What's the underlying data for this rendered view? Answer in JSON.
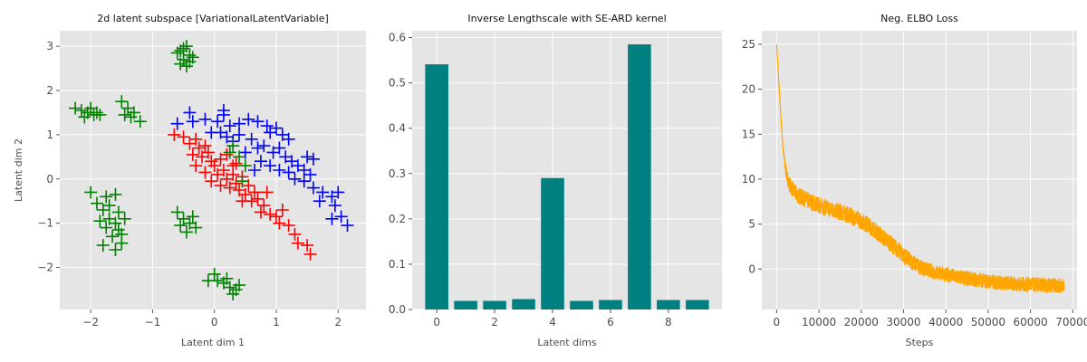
{
  "chart_data": [
    {
      "type": "scatter",
      "title": "2d latent subspace [VariationalLatentVariable]",
      "xlabel": "Latent dim 1",
      "ylabel": "Latent dim 2",
      "xlim": [
        -2.5,
        2.45
      ],
      "ylim": [
        -2.95,
        3.35
      ],
      "xticks": [
        -2,
        -1,
        0,
        1,
        2
      ],
      "yticks": [
        -2,
        -1,
        0,
        1,
        2,
        3
      ],
      "grid": true,
      "marker": "plus",
      "series": [
        {
          "color": "#0000ff",
          "points": [
            [
              -0.6,
              1.25
            ],
            [
              -0.35,
              1.3
            ],
            [
              -0.15,
              1.35
            ],
            [
              0.05,
              1.3
            ],
            [
              0.15,
              1.45
            ],
            [
              0.25,
              1.2
            ],
            [
              0.4,
              1.25
            ],
            [
              0.55,
              1.35
            ],
            [
              0.7,
              1.3
            ],
            [
              0.85,
              1.2
            ],
            [
              0.9,
              1.05
            ],
            [
              1.0,
              1.15
            ],
            [
              1.1,
              1.0
            ],
            [
              1.2,
              0.9
            ],
            [
              0.6,
              0.9
            ],
            [
              0.7,
              0.7
            ],
            [
              0.8,
              0.75
            ],
            [
              0.95,
              0.6
            ],
            [
              1.05,
              0.7
            ],
            [
              1.15,
              0.5
            ],
            [
              1.25,
              0.4
            ],
            [
              1.35,
              0.3
            ],
            [
              1.45,
              0.2
            ],
            [
              1.55,
              0.1
            ],
            [
              1.3,
              0.0
            ],
            [
              1.45,
              -0.05
            ],
            [
              1.6,
              -0.2
            ],
            [
              1.75,
              -0.3
            ],
            [
              1.9,
              -0.4
            ],
            [
              2.0,
              -0.3
            ],
            [
              1.95,
              -0.6
            ],
            [
              2.05,
              -0.85
            ],
            [
              2.15,
              -1.05
            ],
            [
              1.9,
              -0.9
            ],
            [
              1.7,
              -0.5
            ],
            [
              0.4,
              1.0
            ],
            [
              0.3,
              0.85
            ],
            [
              0.2,
              0.95
            ],
            [
              0.1,
              1.05
            ],
            [
              -0.05,
              1.05
            ],
            [
              0.5,
              0.6
            ],
            [
              0.75,
              0.4
            ],
            [
              0.65,
              0.2
            ],
            [
              0.9,
              0.3
            ],
            [
              1.05,
              0.2
            ],
            [
              1.2,
              0.15
            ],
            [
              1.5,
              0.5
            ],
            [
              1.6,
              0.45
            ],
            [
              -0.4,
              1.5
            ],
            [
              0.15,
              1.55
            ]
          ]
        },
        {
          "color": "#ff0000",
          "points": [
            [
              -0.65,
              1.0
            ],
            [
              -0.5,
              0.95
            ],
            [
              -0.4,
              0.8
            ],
            [
              -0.3,
              0.9
            ],
            [
              -0.25,
              0.7
            ],
            [
              -0.15,
              0.75
            ],
            [
              -0.1,
              0.6
            ],
            [
              -0.2,
              0.5
            ],
            [
              -0.05,
              0.4
            ],
            [
              0.0,
              0.3
            ],
            [
              0.1,
              0.45
            ],
            [
              0.15,
              0.2
            ],
            [
              0.05,
              0.1
            ],
            [
              0.2,
              0.0
            ],
            [
              0.3,
              0.1
            ],
            [
              0.35,
              -0.1
            ],
            [
              0.25,
              -0.2
            ],
            [
              0.4,
              -0.25
            ],
            [
              0.5,
              -0.35
            ],
            [
              0.45,
              -0.5
            ],
            [
              0.6,
              -0.5
            ],
            [
              0.7,
              -0.45
            ],
            [
              0.8,
              -0.6
            ],
            [
              0.75,
              -0.75
            ],
            [
              0.9,
              -0.8
            ],
            [
              1.0,
              -0.85
            ],
            [
              1.05,
              -1.0
            ],
            [
              1.2,
              -1.05
            ],
            [
              1.3,
              -1.25
            ],
            [
              1.35,
              -1.45
            ],
            [
              1.5,
              -1.5
            ],
            [
              1.55,
              -1.7
            ],
            [
              1.1,
              -0.7
            ],
            [
              0.65,
              -0.3
            ],
            [
              0.3,
              0.3
            ],
            [
              0.45,
              0.05
            ],
            [
              -0.05,
              -0.05
            ],
            [
              0.1,
              -0.15
            ],
            [
              -0.15,
              0.15
            ],
            [
              0.55,
              -0.15
            ],
            [
              0.85,
              -0.3
            ],
            [
              0.2,
              0.55
            ],
            [
              0.35,
              0.35
            ],
            [
              -0.35,
              0.55
            ],
            [
              -0.3,
              0.3
            ]
          ]
        },
        {
          "color": "#008000",
          "points": [
            [
              -0.55,
              2.9
            ],
            [
              -0.45,
              3.0
            ],
            [
              -0.5,
              2.7
            ],
            [
              -0.4,
              2.8
            ],
            [
              -0.55,
              2.6
            ],
            [
              -0.35,
              2.75
            ],
            [
              -0.6,
              2.85
            ],
            [
              -0.45,
              2.55
            ],
            [
              -0.5,
              2.95
            ],
            [
              -0.4,
              2.65
            ],
            [
              -2.25,
              1.6
            ],
            [
              -2.15,
              1.55
            ],
            [
              -2.05,
              1.5
            ],
            [
              -1.95,
              1.45
            ],
            [
              -1.85,
              1.45
            ],
            [
              -2.1,
              1.4
            ],
            [
              -2.0,
              1.6
            ],
            [
              -1.9,
              1.5
            ],
            [
              -1.5,
              1.75
            ],
            [
              -1.4,
              1.6
            ],
            [
              -1.35,
              1.4
            ],
            [
              -1.2,
              1.3
            ],
            [
              -1.3,
              1.5
            ],
            [
              -1.45,
              1.45
            ],
            [
              -2.0,
              -0.3
            ],
            [
              -1.9,
              -0.55
            ],
            [
              -1.75,
              -0.4
            ],
            [
              -1.8,
              -0.7
            ],
            [
              -1.7,
              -0.9
            ],
            [
              -1.6,
              -1.0
            ],
            [
              -1.75,
              -1.1
            ],
            [
              -1.65,
              -1.3
            ],
            [
              -1.55,
              -1.15
            ],
            [
              -1.8,
              -1.5
            ],
            [
              -1.6,
              -1.6
            ],
            [
              -1.5,
              -1.45
            ],
            [
              -1.7,
              -0.6
            ],
            [
              -1.55,
              -0.75
            ],
            [
              -1.45,
              -0.9
            ],
            [
              -1.6,
              -0.35
            ],
            [
              -1.85,
              -0.95
            ],
            [
              -1.5,
              -1.25
            ],
            [
              -0.6,
              -0.75
            ],
            [
              -0.5,
              -0.9
            ],
            [
              -0.4,
              -1.0
            ],
            [
              -0.3,
              -1.1
            ],
            [
              -0.45,
              -1.2
            ],
            [
              -0.35,
              -0.85
            ],
            [
              -0.55,
              -1.05
            ],
            [
              0.0,
              -2.15
            ],
            [
              0.05,
              -2.3
            ],
            [
              0.15,
              -2.35
            ],
            [
              0.25,
              -2.45
            ],
            [
              0.35,
              -2.5
            ],
            [
              0.4,
              -2.4
            ],
            [
              -0.1,
              -2.3
            ],
            [
              0.2,
              -2.25
            ],
            [
              0.3,
              -2.6
            ],
            [
              0.45,
              -0.05
            ],
            [
              0.3,
              0.75
            ],
            [
              0.4,
              0.5
            ],
            [
              0.25,
              0.6
            ],
            [
              0.5,
              0.3
            ]
          ]
        }
      ]
    },
    {
      "type": "bar",
      "title": "Inverse Lengthscale with SE-ARD kernel",
      "xlabel": "Latent dims",
      "ylabel": "",
      "categories": [
        0,
        1,
        2,
        3,
        4,
        5,
        6,
        7,
        8,
        9
      ],
      "values": [
        0.541,
        0.019,
        0.019,
        0.023,
        0.29,
        0.019,
        0.021,
        0.585,
        0.021,
        0.021
      ],
      "xlim": [
        -0.85,
        9.85
      ],
      "ylim": [
        0,
        0.615
      ],
      "xticks": [
        0,
        2,
        4,
        6,
        8
      ],
      "yticks": [
        0.0,
        0.1,
        0.2,
        0.3,
        0.4,
        0.5,
        0.6
      ],
      "color": "#008080",
      "grid": true
    },
    {
      "type": "line",
      "title": "Neg. ELBO Loss",
      "xlabel": "Steps",
      "ylabel": "",
      "xlim": [
        -3500,
        71000
      ],
      "ylim": [
        -4.5,
        26.5
      ],
      "xticks": [
        0,
        10000,
        20000,
        30000,
        40000,
        50000,
        60000,
        70000
      ],
      "yticks": [
        0,
        5,
        10,
        15,
        20,
        25
      ],
      "color": "#ffa500",
      "grid": true,
      "x": [
        0,
        500,
        1000,
        1500,
        2000,
        2500,
        3000,
        4000,
        5000,
        7000,
        10000,
        13000,
        16000,
        19000,
        22000,
        25000,
        28000,
        31000,
        34000,
        37000,
        40000,
        43000,
        46000,
        49000,
        52000,
        55000,
        58000,
        61000,
        64000,
        67000,
        68000
      ],
      "values": [
        25,
        21,
        17,
        13.5,
        11.5,
        10.2,
        9.5,
        8.7,
        8.2,
        7.7,
        7.1,
        6.6,
        6.2,
        5.6,
        4.8,
        3.6,
        2.4,
        1.1,
        0.2,
        -0.3,
        -0.6,
        -0.9,
        -1.1,
        -1.3,
        -1.5,
        -1.6,
        -1.7,
        -1.75,
        -1.8,
        -1.85,
        -1.85
      ],
      "noise_band": [
        0,
        0,
        0,
        0.4,
        0.6,
        0.7,
        0.8,
        0.9,
        0.9,
        0.9,
        0.9,
        0.9,
        0.9,
        0.9,
        0.9,
        0.9,
        0.9,
        0.9,
        0.8,
        0.8,
        0.8,
        0.8,
        0.8,
        0.8,
        0.8,
        0.8,
        0.8,
        0.8,
        0.8,
        0.8,
        0.8
      ]
    }
  ]
}
